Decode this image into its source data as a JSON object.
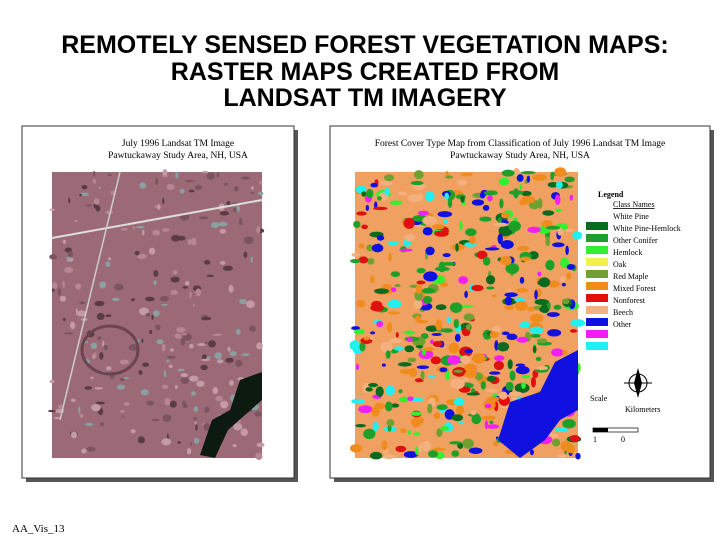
{
  "title": {
    "lines": [
      "REMOTELY SENSED FOREST VEGETATION MAPS:",
      "RASTER MAPS CREATED FROM",
      "LANDSAT TM IMAGERY"
    ]
  },
  "left_panel": {
    "caption": [
      "July 1996 Landsat TM Image",
      "Pawtuckaway Study Area, NH, USA"
    ]
  },
  "right_panel": {
    "caption": [
      "Forest Cover Type Map from Classification of July 1996 Landsat TM Image",
      "Pawtuckaway Study Area, NH, USA"
    ],
    "legend": {
      "title": "Legend",
      "header": "Class Names",
      "classes": [
        "White Pine",
        "White Pine-Hemlock",
        "Other Conifer",
        "Hemlock",
        "Oak",
        "Red Maple",
        "Mixed Forest",
        "Nonforest",
        "Beech",
        "Other"
      ]
    },
    "scale": {
      "label": "Scale",
      "unit": "Kilometers",
      "ticks": [
        "1",
        "0"
      ]
    }
  },
  "footer": {
    "slide_id": "AA_Vis_13"
  }
}
